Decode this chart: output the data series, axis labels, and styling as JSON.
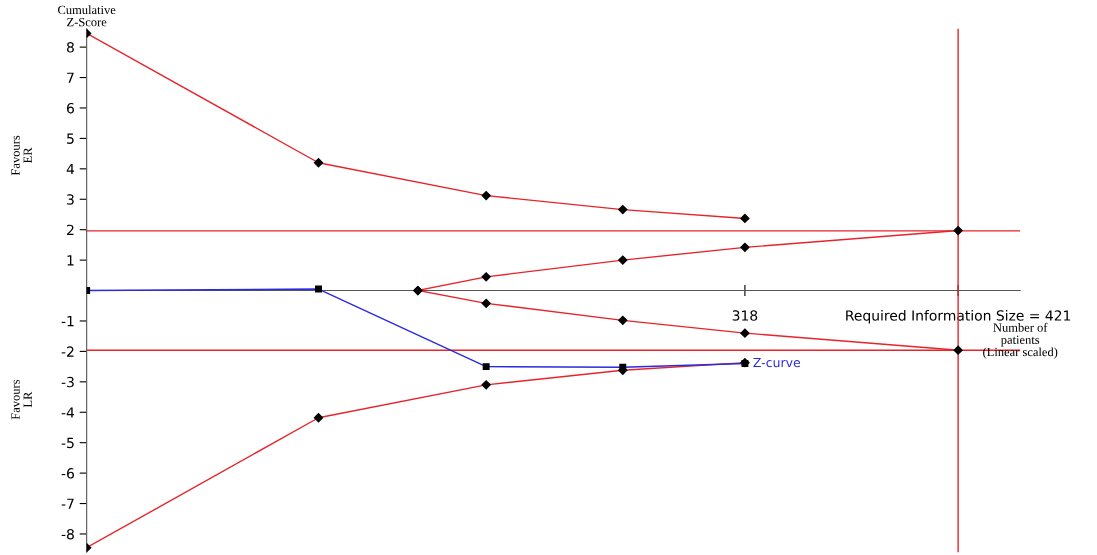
{
  "chart_data": {
    "type": "line",
    "xlabel": "Number of\npatients\n(Linear scaled)",
    "ylabel": "Cumulative\nZ-Score",
    "annotations": [
      "Favours\nER",
      "Favours\nLR"
    ],
    "series": [
      {
        "color": "#e8232a",
        "marker": "diamond",
        "x": [
          0,
          112,
          193,
          259,
          318
        ],
        "values": [
          8.45,
          4.2,
          3.12,
          2.66,
          2.37
        ]
      },
      {
        "color": "#e8232a",
        "marker": "diamond",
        "x": [
          0,
          112,
          193,
          259,
          318
        ],
        "values": [
          -8.45,
          -4.18,
          -3.1,
          -2.62,
          -2.37
        ]
      },
      {
        "color": "#e8232a",
        "marker": "diamond",
        "x": [
          160,
          193,
          259,
          318,
          421
        ],
        "values": [
          0,
          0.45,
          1.0,
          1.42,
          1.97
        ]
      },
      {
        "color": "#e8232a",
        "marker": "diamond",
        "x": [
          160,
          193,
          259,
          318,
          421
        ],
        "values": [
          0,
          -0.42,
          -0.98,
          -1.4,
          -1.96
        ]
      },
      {
        "name": "Z-curve",
        "color": "#2a2ae0",
        "marker": "square",
        "x": [
          0,
          112,
          193,
          259,
          318
        ],
        "values": [
          0,
          0.05,
          -2.5,
          -2.52,
          -2.4
        ]
      }
    ],
    "ref_lines": [
      {
        "axis": "y",
        "value": 1.96,
        "color": "#e8232a"
      },
      {
        "axis": "y",
        "value": -1.96,
        "color": "#e8232a"
      },
      {
        "axis": "x",
        "value": 421,
        "color": "#e8232a"
      }
    ],
    "xlim": [
      0,
      451
    ],
    "xticks": [
      318,
      {
        "value": 421,
        "label": "Required Information Size = 421"
      }
    ],
    "ylim": [
      -8.6,
      8.6
    ],
    "yticks": [
      -8,
      -7,
      -6,
      -5,
      -4,
      -3,
      -2,
      -1,
      1,
      2,
      3,
      4,
      5,
      6,
      7,
      8
    ],
    "grid": false,
    "legend": false,
    "line_style": "solid"
  }
}
